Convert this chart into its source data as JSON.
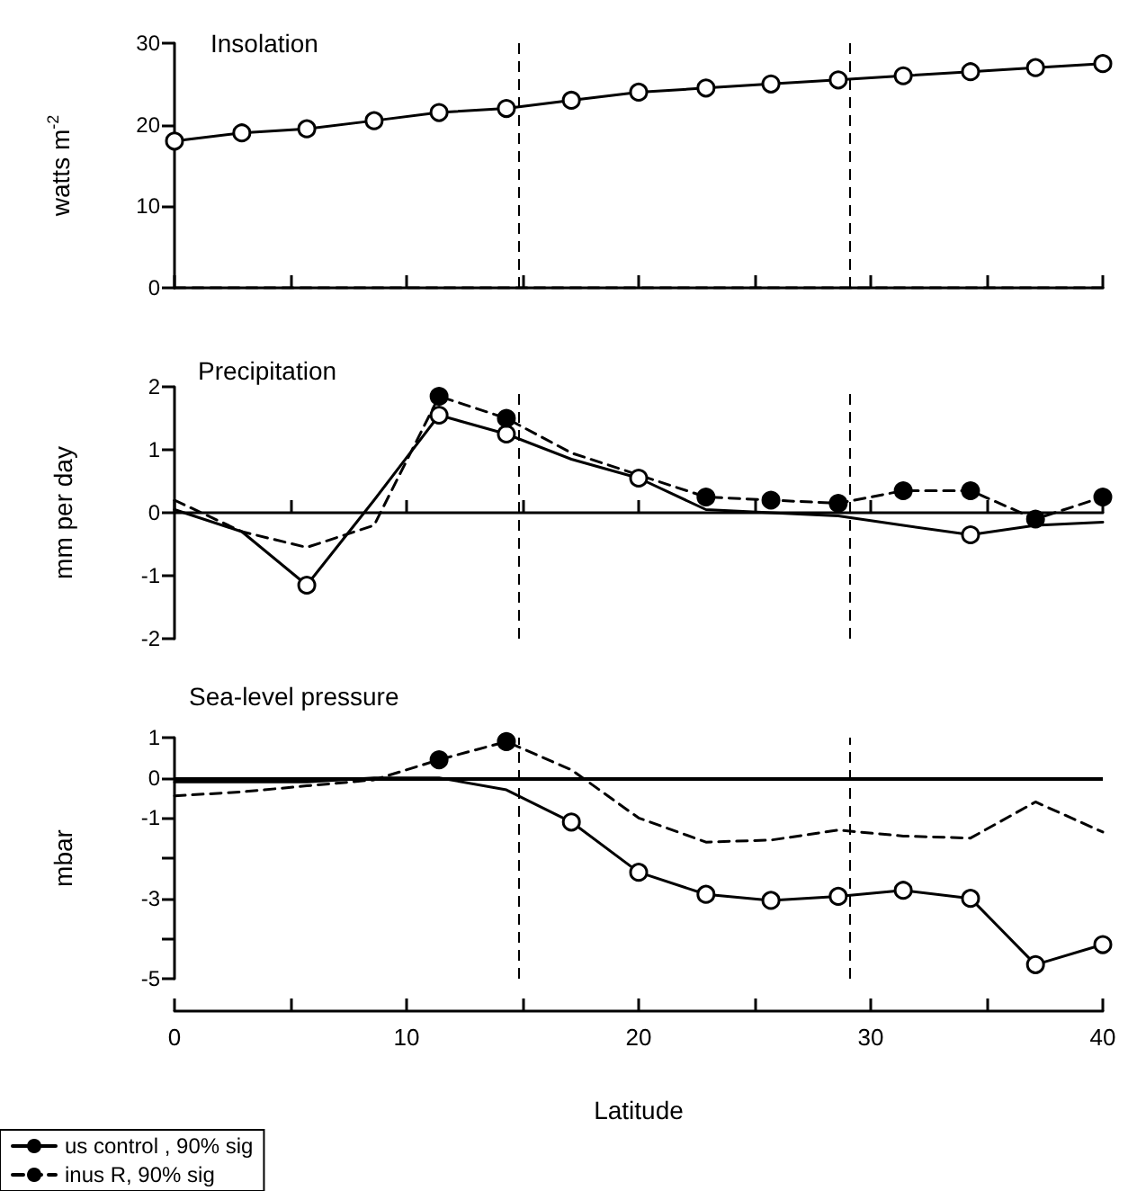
{
  "chart_data": [
    {
      "type": "line",
      "title": "Insolation",
      "ylabel": "watts m$^{-2}$",
      "x": [
        0,
        2.9,
        5.7,
        8.6,
        11.4,
        14.3,
        17.1,
        20,
        22.9,
        25.7,
        28.6,
        31.4,
        34.3,
        37.1,
        40
      ],
      "xlim": [
        0,
        40
      ],
      "xticks": [
        0,
        {
          "value": 5,
          "label": null
        },
        10,
        {
          "value": 15,
          "label": null
        },
        20,
        {
          "value": 25,
          "label": null
        },
        30,
        {
          "value": 35,
          "label": null
        },
        40
      ],
      "ylim": [
        0,
        30
      ],
      "yticks": [
        0,
        10,
        20,
        30
      ],
      "tick_labels": "y",
      "grid": false,
      "legend": false,
      "series": [
        {
          "type": "line",
          "color": "#000000",
          "line_style": "solid",
          "marker": "none",
          "values": [
            18,
            19,
            19.5,
            20.5,
            21.5,
            22,
            23,
            24,
            24.5,
            25,
            25.5,
            26,
            26.5,
            27,
            27.5
          ]
        },
        {
          "type": "line",
          "color": "#000000",
          "line_style": "dashed",
          "marker": "none",
          "values": [
            0,
            0,
            0,
            0,
            0,
            0,
            0,
            0,
            0,
            0,
            0,
            0,
            0,
            0,
            0
          ]
        },
        {
          "type": "scatter",
          "color": "#ffffff",
          "marker": "circle",
          "values": [
            18,
            19,
            19.5,
            20.5,
            21.5,
            22,
            23,
            24,
            24.5,
            25,
            25.5,
            26,
            26.5,
            27,
            27.5
          ]
        }
      ],
      "ref_lines": [
        {
          "axis": "x",
          "value": 14.8,
          "line_style": "dashed"
        },
        {
          "axis": "x",
          "value": 29.1,
          "line_style": "dashed"
        }
      ]
    },
    {
      "type": "line",
      "title": "Precipitation",
      "ylabel": "mm per day",
      "x": [
        0,
        2.9,
        5.7,
        8.6,
        11.4,
        14.3,
        17.1,
        20,
        22.9,
        25.7,
        28.6,
        31.4,
        34.3,
        37.1,
        40
      ],
      "xlim": [
        0,
        40
      ],
      "xticks": [
        0,
        {
          "value": 5,
          "label": null
        },
        10,
        {
          "value": 15,
          "label": null
        },
        20,
        {
          "value": 25,
          "label": null
        },
        30,
        {
          "value": 35,
          "label": null
        },
        40
      ],
      "ylim": [
        -2,
        2
      ],
      "yticks": [
        -2,
        -1,
        0,
        1,
        2
      ],
      "tick_labels": "y",
      "grid": false,
      "legend": false,
      "series": [
        {
          "type": "line",
          "color": "#000000",
          "line_style": "solid",
          "marker": "none",
          "values": [
            0.05,
            -0.3,
            -1.15,
            0.2,
            1.55,
            1.25,
            0.85,
            0.55,
            0.05,
            0,
            -0.05,
            -0.2,
            -0.35,
            -0.2,
            -0.15
          ]
        },
        {
          "type": "line",
          "color": "#000000",
          "line_style": "dashed",
          "marker": "none",
          "values": [
            0.2,
            -0.3,
            -0.55,
            -0.2,
            1.85,
            1.5,
            0.95,
            0.6,
            0.25,
            0.2,
            0.15,
            0.35,
            0.35,
            -0.1,
            0.25
          ]
        },
        {
          "type": "scatter",
          "color": "#ffffff",
          "marker": "circle",
          "values": [
            null,
            null,
            -1.15,
            null,
            1.55,
            1.25,
            null,
            0.55,
            null,
            null,
            null,
            null,
            -0.35,
            null,
            null
          ]
        },
        {
          "type": "scatter",
          "color": "#000000",
          "marker": "circle",
          "values": [
            null,
            null,
            null,
            null,
            1.85,
            1.5,
            null,
            null,
            0.25,
            0.2,
            0.15,
            0.35,
            0.35,
            -0.1,
            0.25
          ]
        }
      ],
      "ref_lines": [
        {
          "axis": "x",
          "value": 14.8,
          "line_style": "dashed"
        },
        {
          "axis": "x",
          "value": 29.1,
          "line_style": "dashed"
        }
      ]
    },
    {
      "type": "line",
      "title": "Sea-level pressure",
      "ylabel": "mbar",
      "xlabel": "Latitude",
      "x": [
        0,
        2.9,
        5.7,
        8.6,
        11.4,
        14.3,
        17.1,
        20,
        22.9,
        25.7,
        28.6,
        31.4,
        34.3,
        37.1,
        40
      ],
      "xlim": [
        0,
        40
      ],
      "xticks": [
        0,
        {
          "value": 5,
          "label": null
        },
        10,
        {
          "value": 15,
          "label": null
        },
        20,
        {
          "value": 25,
          "label": null
        },
        30,
        {
          "value": 35,
          "label": null
        },
        40
      ],
      "ylim": [
        -5,
        1
      ],
      "yticks": [
        -5,
        {
          "value": -4,
          "label": null
        },
        -3,
        {
          "value": -2,
          "label": null
        },
        -1,
        0,
        1
      ],
      "grid": false,
      "legend": "bottom left",
      "series": [
        {
          "type": "line",
          "name": "us control , 90% sig",
          "color": "#000000",
          "line_style": "solid",
          "marker": "none",
          "values": [
            -0.1,
            -0.1,
            -0.1,
            0,
            0,
            -0.3,
            -1.1,
            -2.35,
            -2.9,
            -3.05,
            -2.95,
            -2.8,
            -3,
            -4.65,
            -4.15
          ]
        },
        {
          "type": "line",
          "name": "inus R, 90% sig",
          "color": "#000000",
          "line_style": "dashed",
          "marker": "none",
          "values": [
            -0.45,
            -0.35,
            -0.2,
            -0.05,
            0.45,
            0.9,
            0.2,
            -1,
            -1.6,
            -1.55,
            -1.3,
            -1.45,
            -1.5,
            -0.6,
            -1.35
          ]
        },
        {
          "type": "scatter",
          "color": "#ffffff",
          "marker": "circle",
          "values": [
            null,
            null,
            null,
            null,
            null,
            null,
            -1.1,
            -2.35,
            -2.9,
            -3.05,
            -2.95,
            -2.8,
            -3,
            -4.65,
            -4.15
          ]
        },
        {
          "type": "scatter",
          "color": "#000000",
          "marker": "circle",
          "values": [
            null,
            null,
            null,
            null,
            0.45,
            0.9,
            null,
            null,
            null,
            null,
            null,
            null,
            null,
            null,
            null
          ]
        }
      ],
      "ref_lines": [
        {
          "axis": "y",
          "value": 0,
          "line_style": "solid"
        },
        {
          "axis": "x",
          "value": 14.8,
          "line_style": "dashed"
        },
        {
          "axis": "x",
          "value": 29.1,
          "line_style": "dashed"
        }
      ]
    }
  ]
}
